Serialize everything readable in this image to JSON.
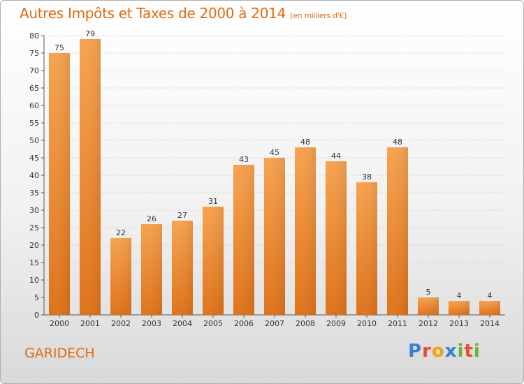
{
  "header": {
    "title": "Autres Impôts et Taxes de 2000 à 2014",
    "unit": "(en milliers d'€)"
  },
  "footer": {
    "location": "GARIDECH",
    "logo_text": "Proxiti"
  },
  "colors": {
    "bar": "#f08a2a",
    "accent": "#e06b10"
  },
  "chart_data": {
    "type": "bar",
    "title": "Autres Impôts et Taxes de 2000 à 2014",
    "subtitle": "(en milliers d'€)",
    "xlabel": "",
    "ylabel": "",
    "categories": [
      "2000",
      "2001",
      "2002",
      "2003",
      "2004",
      "2005",
      "2006",
      "2007",
      "2008",
      "2009",
      "2010",
      "2011",
      "2012",
      "2013",
      "2014"
    ],
    "values": [
      75,
      79,
      22,
      26,
      27,
      31,
      43,
      45,
      48,
      44,
      38,
      48,
      5,
      4,
      4
    ],
    "ylim": [
      0,
      80
    ],
    "yticks": [
      0,
      5,
      10,
      15,
      20,
      25,
      30,
      35,
      40,
      45,
      50,
      55,
      60,
      65,
      70,
      75,
      80
    ],
    "grid": true,
    "data_labels": true
  }
}
